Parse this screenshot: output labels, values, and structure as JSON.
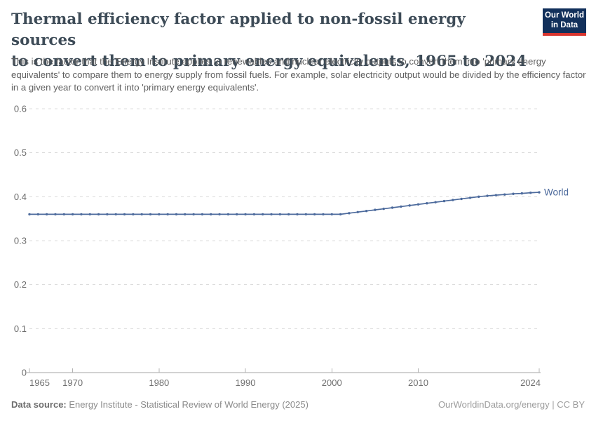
{
  "logo": {
    "line1": "Our World",
    "line2": "in Data",
    "bg_color": "#12305b",
    "stripe_color": "#d8352f"
  },
  "header": {
    "title_line1": "Thermal efficiency factor applied to non-fossil energy sources",
    "title_line2": "to convert them to primary energy equivalents, 1965 to 2024",
    "subtitle": "This is the factor that the Energy Institute applies to renewables and nuclear electricity outputs to convert them into 'primary energy equivalents' to compare them to energy supply from fossil fuels. For example, solar electricity output would be divided by the efficiency factor in a given year to convert it into 'primary energy equivalents'."
  },
  "chart_data": {
    "type": "line",
    "title": "Thermal efficiency factor applied to non-fossil energy sources to convert them to primary energy equivalents, 1965 to 2024",
    "xlabel": "",
    "ylabel": "",
    "xlim": [
      1965,
      2024
    ],
    "ylim": [
      0,
      0.6
    ],
    "grid": "horizontal-dashed",
    "legend_position": "end-of-line",
    "line_color": "#4c6a9c",
    "xticks": [
      1965,
      1970,
      1980,
      1990,
      2000,
      2010,
      2024
    ],
    "yticks": [
      0,
      0.1,
      0.2,
      0.3,
      0.4,
      0.5,
      0.6
    ],
    "ytick_labels": [
      "0",
      "0.1",
      "0.2",
      "0.3",
      "0.4",
      "0.5",
      "0.6"
    ],
    "x": [
      1965,
      1966,
      1967,
      1968,
      1969,
      1970,
      1971,
      1972,
      1973,
      1974,
      1975,
      1976,
      1977,
      1978,
      1979,
      1980,
      1981,
      1982,
      1983,
      1984,
      1985,
      1986,
      1987,
      1988,
      1989,
      1990,
      1991,
      1992,
      1993,
      1994,
      1995,
      1996,
      1997,
      1998,
      1999,
      2000,
      2001,
      2002,
      2003,
      2004,
      2005,
      2006,
      2007,
      2008,
      2009,
      2010,
      2011,
      2012,
      2013,
      2014,
      2015,
      2016,
      2017,
      2018,
      2019,
      2020,
      2021,
      2022,
      2023,
      2024
    ],
    "series": [
      {
        "name": "World",
        "color": "#4c6a9c",
        "values": [
          0.36,
          0.36,
          0.36,
          0.36,
          0.36,
          0.36,
          0.36,
          0.36,
          0.36,
          0.36,
          0.36,
          0.36,
          0.36,
          0.36,
          0.36,
          0.36,
          0.36,
          0.36,
          0.36,
          0.36,
          0.36,
          0.36,
          0.36,
          0.36,
          0.36,
          0.36,
          0.36,
          0.36,
          0.36,
          0.36,
          0.36,
          0.36,
          0.36,
          0.36,
          0.36,
          0.36,
          0.36,
          0.3625,
          0.365,
          0.3675,
          0.37,
          0.3725,
          0.375,
          0.3775,
          0.38,
          0.3825,
          0.385,
          0.3875,
          0.39,
          0.3925,
          0.395,
          0.3975,
          0.4,
          0.402,
          0.4035,
          0.405,
          0.4065,
          0.4075,
          0.409,
          0.41
        ]
      }
    ]
  },
  "footer": {
    "source_label": "Data source:",
    "source_text": "Energy Institute - Statistical Review of World Energy (2025)",
    "license_text": "OurWorldinData.org/energy | CC BY"
  }
}
